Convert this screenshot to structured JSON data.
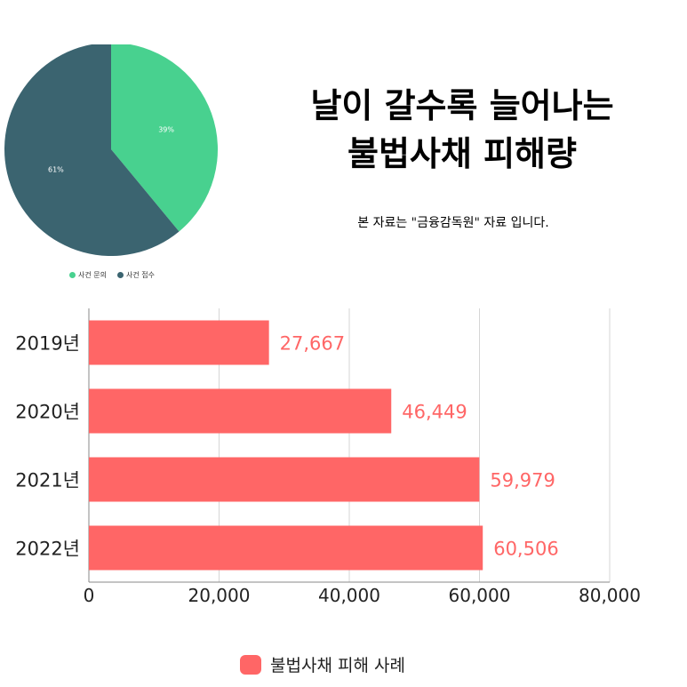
{
  "title_line1": "날이 갈수록 늘어나는",
  "title_line2": "불법사채 피해량",
  "source_note": "본 자료는 \"금융감독원\" 자료 입니다.",
  "chart_data": [
    {
      "type": "pie",
      "slices": [
        {
          "label": "사건 문의",
          "value": 39,
          "display": "39%",
          "color": "#48d18f"
        },
        {
          "label": "사건 접수",
          "value": 61,
          "display": "61%",
          "color": "#3b6470"
        }
      ]
    },
    {
      "type": "bar",
      "orientation": "horizontal",
      "categories": [
        "2019년",
        "2020년",
        "2021년",
        "2022년"
      ],
      "series": [
        {
          "name": "불법사채 피해 사례",
          "values": [
            27667,
            46449,
            59979,
            60506
          ],
          "labels": [
            "27,667",
            "46,449",
            "59,979",
            "60,506"
          ],
          "color": "#ff6666"
        }
      ],
      "xlim": [
        0,
        80000
      ],
      "xticks": [
        0,
        20000,
        40000,
        60000,
        80000
      ],
      "xtick_labels": [
        "0",
        "20,000",
        "40,000",
        "60,000",
        "80,000"
      ],
      "grid": true,
      "legend": "bottom"
    }
  ]
}
